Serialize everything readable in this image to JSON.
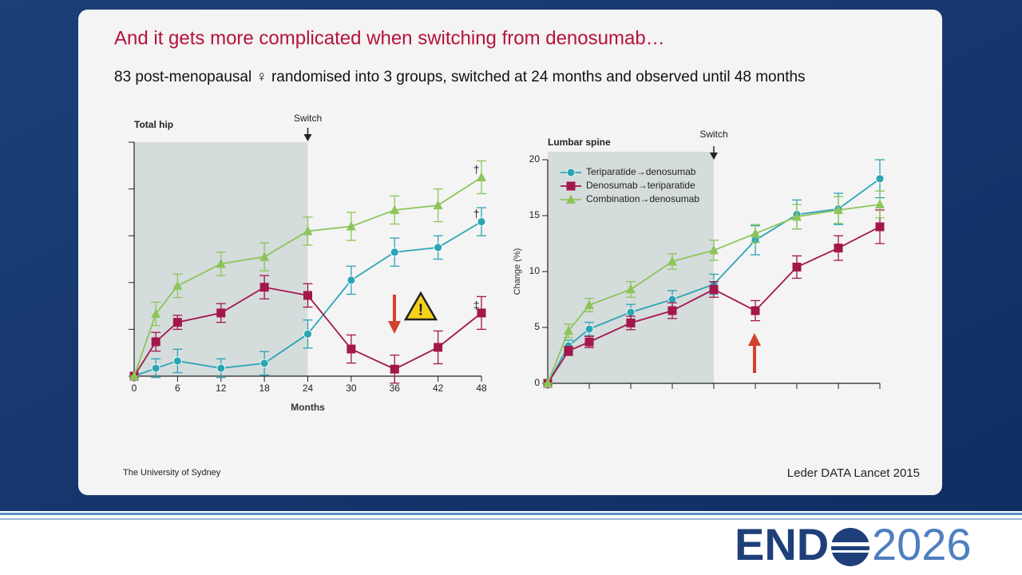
{
  "slide": {
    "title": "And it gets more complicated when switching from denosumab…",
    "subtitle": "83 post-menopausal ♀ randomised into 3 groups, switched at 24 months and observed until 48 months",
    "footer_left": "The University of Sydney",
    "footer_right": "Leder DATA Lancet 2015",
    "logo_left": "END",
    "logo_right": "2026"
  },
  "chart_data": [
    {
      "type": "line",
      "title": "Total hip",
      "xlabel": "Months",
      "x": [
        0,
        3,
        6,
        12,
        18,
        24,
        30,
        36,
        42,
        48
      ],
      "xlim": [
        0,
        48
      ],
      "xticks": [
        0,
        6,
        12,
        18,
        24,
        30,
        36,
        42,
        48
      ],
      "ylim": [
        0,
        10
      ],
      "yticks": [
        0,
        2,
        4,
        6,
        8,
        10
      ],
      "ytick_labels_shown": false,
      "legend": false,
      "shaded_until": 24,
      "switch_label": "Switch",
      "switch_x": 24,
      "series": [
        {
          "color": "#2ba5b5",
          "marker": "circle",
          "values": [
            0,
            0.34,
            0.65,
            0.34,
            0.55,
            1.8,
            4.1,
            5.3,
            5.5,
            6.6
          ],
          "errors": [
            0,
            0.4,
            0.5,
            0.4,
            0.5,
            0.6,
            0.6,
            0.6,
            0.5,
            0.6
          ]
        },
        {
          "color": "#a3174a",
          "marker": "square",
          "values": [
            0,
            1.47,
            2.3,
            2.7,
            3.8,
            3.45,
            1.16,
            0.3,
            1.23,
            2.7
          ],
          "errors": [
            0,
            0.4,
            0.3,
            0.4,
            0.5,
            0.5,
            0.6,
            0.6,
            0.7,
            0.7
          ]
        },
        {
          "color": "#8cc55a",
          "marker": "triangle",
          "values": [
            0,
            2.66,
            3.86,
            4.8,
            5.1,
            6.2,
            6.4,
            7.1,
            7.3,
            8.5
          ],
          "errors": [
            0,
            0.5,
            0.5,
            0.5,
            0.6,
            0.6,
            0.6,
            0.6,
            0.7,
            0.7
          ]
        }
      ],
      "annotations": [
        {
          "text": "†",
          "x": 47.3,
          "y": 8.8
        },
        {
          "text": "†",
          "x": 47.3,
          "y": 6.9
        },
        {
          "text": "‡",
          "x": 47.3,
          "y": 3.0
        }
      ]
    },
    {
      "type": "line",
      "title": "Lumbar spine",
      "ylabel": "Change (%)",
      "x": [
        0,
        3,
        6,
        12,
        18,
        24,
        30,
        36,
        42,
        48
      ],
      "xlim": [
        0,
        48
      ],
      "xticks": [
        0,
        6,
        12,
        18,
        24,
        30,
        36,
        42,
        48
      ],
      "xtick_labels_shown": false,
      "ylim": [
        0,
        20
      ],
      "yticks": [
        0,
        5,
        10,
        15,
        20
      ],
      "legend": "upper left",
      "shaded_until": 24,
      "switch_label": "Switch",
      "switch_x": 24,
      "series": [
        {
          "name": "Teriparatide→denosumab",
          "color": "#2ba5b5",
          "marker": "circle",
          "values": [
            0,
            3.36,
            4.86,
            6.36,
            7.5,
            8.86,
            12.8,
            15.1,
            15.6,
            18.3
          ],
          "errors": [
            0,
            0.5,
            0.6,
            0.7,
            0.8,
            0.9,
            1.3,
            1.3,
            1.4,
            1.7
          ]
        },
        {
          "name": "Denosumab→teriparatide",
          "color": "#a3174a",
          "marker": "square",
          "values": [
            0,
            2.9,
            3.7,
            5.4,
            6.5,
            8.4,
            6.5,
            10.4,
            12.1,
            14.0
          ],
          "errors": [
            0,
            0.4,
            0.5,
            0.6,
            0.7,
            0.7,
            0.9,
            1.0,
            1.1,
            1.5
          ]
        },
        {
          "name": "Combination→denosumab",
          "color": "#8cc55a",
          "marker": "triangle",
          "values": [
            0,
            4.7,
            7.0,
            8.4,
            10.9,
            11.9,
            13.4,
            14.9,
            15.5,
            16.0
          ],
          "errors": [
            0,
            0.6,
            0.6,
            0.7,
            0.7,
            0.9,
            0.8,
            1.1,
            1.2,
            1.2
          ]
        }
      ]
    }
  ]
}
